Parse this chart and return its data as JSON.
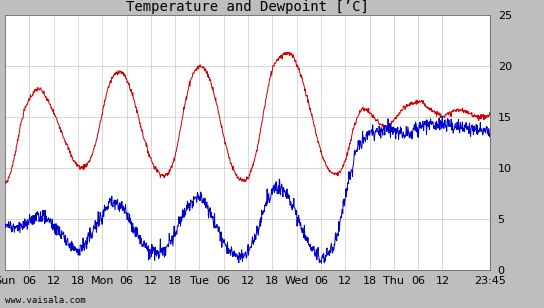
{
  "title": "Temperature and Dewpoint [’C]",
  "ylim": [
    0,
    25
  ],
  "yticks": [
    0,
    5,
    10,
    15,
    20,
    25
  ],
  "xtick_labels": [
    "Sun",
    "06",
    "12",
    "18",
    "Mon",
    "06",
    "12",
    "18",
    "Tue",
    "06",
    "12",
    "18",
    "Wed",
    "06",
    "12",
    "18",
    "Thu",
    "06",
    "12",
    "23:45"
  ],
  "watermark": "www.vaisala.com",
  "bg_color": "#bebebe",
  "plot_bg": "#ffffff",
  "grid_color": "#c8c8c8",
  "temp_color": "#cc0000",
  "dew_color": "#0000cc",
  "linewidth": 0.7,
  "title_fontsize": 10,
  "tick_fontsize": 8,
  "total_hours": 119.75,
  "tick_positions": [
    0,
    6,
    12,
    18,
    24,
    30,
    36,
    42,
    48,
    54,
    60,
    66,
    72,
    78,
    84,
    90,
    96,
    102,
    108,
    119.75
  ],
  "temp_data": [
    8.5,
    8.8,
    9.5,
    10.5,
    11.8,
    13.2,
    14.5,
    15.5,
    16.2,
    16.8,
    17.2,
    17.5,
    17.8,
    17.7,
    17.4,
    17.0,
    16.5,
    16.0,
    15.4,
    14.8,
    14.2,
    13.5,
    12.8,
    12.2,
    11.5,
    10.9,
    10.5,
    10.2,
    10.0,
    10.1,
    10.3,
    10.6,
    11.2,
    12.0,
    13.0,
    14.2,
    15.5,
    16.8,
    17.8,
    18.5,
    19.0,
    19.3,
    19.5,
    19.4,
    19.1,
    18.6,
    18.0,
    17.2,
    16.3,
    15.3,
    14.2,
    13.2,
    12.3,
    11.5,
    10.8,
    10.2,
    9.8,
    9.5,
    9.3,
    9.2,
    9.4,
    9.8,
    10.5,
    11.5,
    12.8,
    14.2,
    15.7,
    17.0,
    18.2,
    19.0,
    19.5,
    19.8,
    20.0,
    19.9,
    19.6,
    19.1,
    18.4,
    17.5,
    16.4,
    15.2,
    14.0,
    12.8,
    11.8,
    10.8,
    10.0,
    9.4,
    9.0,
    8.8,
    8.7,
    8.8,
    9.2,
    9.8,
    10.7,
    11.8,
    13.2,
    14.8,
    16.3,
    17.7,
    19.0,
    20.0,
    20.5,
    20.8,
    21.0,
    21.2,
    21.3,
    21.2,
    21.0,
    20.6,
    20.0,
    19.3,
    18.4,
    17.4,
    16.4,
    15.4,
    14.3,
    13.2,
    12.2,
    11.3,
    10.6,
    10.0,
    9.7,
    9.5,
    9.4,
    9.5,
    9.8,
    10.3,
    11.0,
    12.0,
    13.2,
    14.2,
    15.0,
    15.5,
    15.8,
    15.8,
    15.6,
    15.3,
    15.0,
    14.7,
    14.4,
    14.2,
    14.0,
    14.0,
    14.2,
    14.5,
    14.8,
    15.2,
    15.5,
    15.8,
    16.0,
    16.2,
    16.3,
    16.4,
    16.5,
    16.5,
    16.4,
    16.2,
    16.0,
    15.8,
    15.6,
    15.4,
    15.3,
    15.2,
    15.1,
    15.2,
    15.3,
    15.5,
    15.6,
    15.7,
    15.7,
    15.6,
    15.5,
    15.4,
    15.3,
    15.2,
    15.1,
    15.0,
    15.0,
    15.0,
    15.1,
    15.2
  ],
  "dew_data": [
    4.5,
    4.4,
    4.3,
    4.2,
    4.1,
    4.0,
    4.1,
    4.3,
    4.5,
    4.8,
    5.0,
    5.2,
    5.3,
    5.4,
    5.3,
    5.1,
    4.9,
    4.6,
    4.3,
    4.0,
    3.7,
    3.4,
    3.1,
    2.8,
    2.5,
    2.3,
    2.2,
    2.1,
    2.2,
    2.4,
    2.7,
    3.1,
    3.5,
    4.0,
    4.5,
    5.0,
    5.5,
    5.9,
    6.2,
    6.4,
    6.5,
    6.5,
    6.4,
    6.2,
    5.9,
    5.5,
    5.0,
    4.5,
    4.0,
    3.5,
    3.0,
    2.6,
    2.3,
    2.0,
    1.8,
    1.7,
    1.6,
    1.7,
    1.8,
    2.0,
    2.3,
    2.7,
    3.2,
    3.8,
    4.4,
    5.0,
    5.6,
    6.1,
    6.5,
    6.8,
    7.0,
    7.1,
    7.0,
    6.8,
    6.5,
    6.1,
    5.6,
    5.0,
    4.4,
    3.8,
    3.2,
    2.7,
    2.3,
    2.0,
    1.7,
    1.5,
    1.4,
    1.3,
    1.4,
    1.6,
    2.0,
    2.5,
    3.1,
    3.8,
    4.6,
    5.4,
    6.2,
    6.9,
    7.4,
    7.8,
    8.0,
    8.1,
    8.0,
    7.8,
    7.5,
    7.1,
    6.5,
    5.9,
    5.2,
    4.5,
    3.8,
    3.2,
    2.6,
    2.2,
    1.8,
    1.5,
    1.3,
    1.2,
    1.3,
    1.5,
    1.8,
    2.3,
    3.0,
    4.0,
    5.2,
    6.5,
    7.8,
    9.0,
    10.0,
    11.0,
    11.8,
    12.4,
    12.8,
    13.0,
    13.2,
    13.3,
    13.4,
    13.5,
    13.6,
    13.7,
    13.8,
    13.8,
    13.8,
    13.7,
    13.6,
    13.5,
    13.5,
    13.4,
    13.4,
    13.5,
    13.6,
    13.7,
    13.8,
    13.9,
    14.0,
    14.1,
    14.2,
    14.3,
    14.3,
    14.3,
    14.3,
    14.3,
    14.3,
    14.3,
    14.2,
    14.1,
    14.0,
    14.0,
    14.0,
    14.0,
    13.9,
    13.9,
    13.8,
    13.8,
    13.7,
    13.7,
    13.6,
    13.6,
    13.5,
    13.5
  ]
}
